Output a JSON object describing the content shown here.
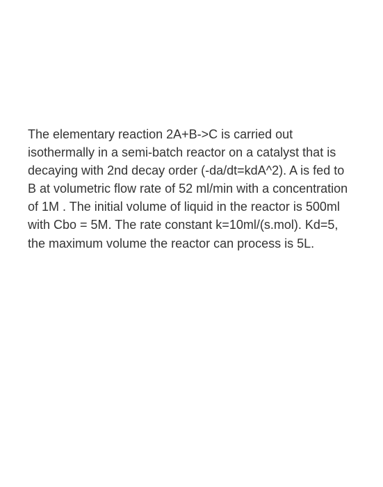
{
  "problem": {
    "line1": "The elementary reaction 2A+B->C is carried out isothermally in a semi-batch reactor on a catalyst that is",
    "line2": "decaying with 2nd decay order (-da/dt=kdA^2). A is fed to B at volumetric flow rate of 52 ml/min with a concentration of 1M . The initial volume of liquid in the reactor is 500ml",
    "line3": "with Cbo = 5M. The rate constant k=10ml/(s.mol). Kd=5, the maximum volume the reactor can process is 5L.",
    "text_color": "#333333",
    "background_color": "#ffffff",
    "font_size": 18,
    "font_family": "Arial, Helvetica, sans-serif",
    "line_height": 1.45,
    "parameters": {
      "reaction": "2A+B->C",
      "reactor_type": "semi-batch",
      "condition": "isothermal",
      "decay_order": 2,
      "decay_equation": "-da/dt=kdA^2",
      "feed_species": "A",
      "initial_species": "B",
      "volumetric_flow_rate": "52 ml/min",
      "concentration_A": "1M",
      "initial_volume": "500ml",
      "Cbo": "5M",
      "rate_constant_k": "10ml/(s.mol)",
      "Kd": 5,
      "max_volume": "5L"
    }
  }
}
